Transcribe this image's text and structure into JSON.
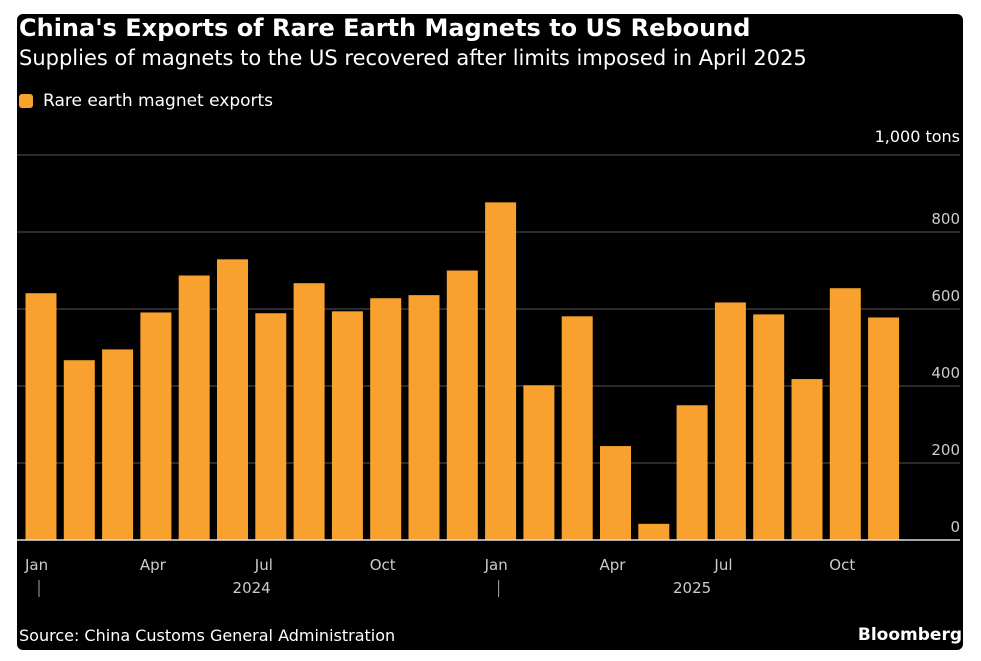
{
  "chart_data": {
    "type": "bar",
    "title": "China's Exports of Rare Earth Magnets to US Rebound",
    "subtitle": "Supplies of magnets to the US recovered after limits imposed in April 2025",
    "legend": [
      {
        "label": "Rare earth magnet exports",
        "color": "#f9a12e"
      }
    ],
    "ylabel": "1,000 tons",
    "ylim": [
      0,
      1000
    ],
    "yticks": [
      0,
      200,
      400,
      600,
      800
    ],
    "categories": [
      "Jan 2024",
      "Feb 2024",
      "Mar 2024",
      "Apr 2024",
      "May 2024",
      "Jun 2024",
      "Jul 2024",
      "Aug 2024",
      "Sep 2024",
      "Oct 2024",
      "Nov 2024",
      "Dec 2024",
      "Jan 2025",
      "Feb 2025",
      "Mar 2025",
      "Apr 2025",
      "May 2025",
      "Jun 2025",
      "Jul 2025",
      "Aug 2025",
      "Sep 2025",
      "Oct 2025",
      "Nov 2025"
    ],
    "values": [
      641,
      467,
      495,
      591,
      687,
      729,
      589,
      667,
      594,
      628,
      636,
      700,
      877,
      402,
      581,
      244,
      42,
      350,
      617,
      586,
      418,
      654,
      578
    ],
    "xtick_labels": [
      {
        "index": 0,
        "label": "Jan"
      },
      {
        "index": 3,
        "label": "Apr"
      },
      {
        "index": 6,
        "label": "Jul"
      },
      {
        "index": 9,
        "label": "Oct"
      },
      {
        "index": 12,
        "label": "Jan"
      },
      {
        "index": 15,
        "label": "Apr"
      },
      {
        "index": 18,
        "label": "Jul"
      },
      {
        "index": 21,
        "label": "Oct"
      }
    ],
    "year_labels": [
      {
        "center": 5.5,
        "label": "2024"
      },
      {
        "center": 17,
        "label": "2025"
      }
    ],
    "source": "Source: China Customs General Administration",
    "brand": "Bloomberg"
  }
}
